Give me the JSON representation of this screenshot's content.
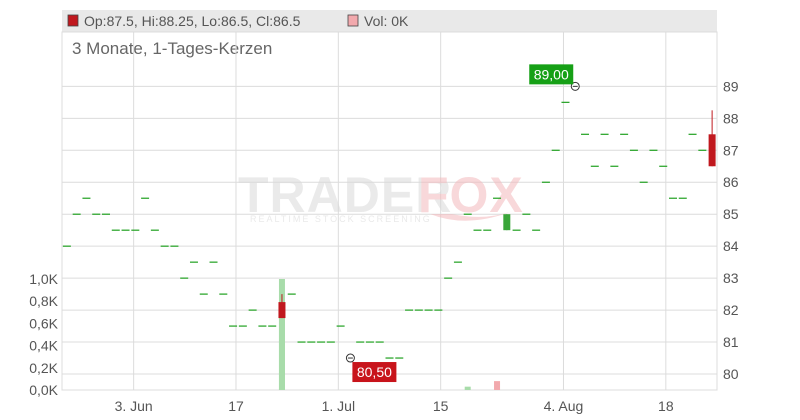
{
  "header": {
    "ohlc": "Op:87.5, Hi:88.25, Lo:86.5, Cl:86.5",
    "volume": "Vol: 0K"
  },
  "subtitle": "3 Monate, 1-Tages-Kerzen",
  "watermark": {
    "brand_left": "TRADER",
    "brand_right": "FOX",
    "tagline": "REALTIME STOCK SCREENING"
  },
  "colors": {
    "up": "#3aa63a",
    "down": "#c0181e",
    "flat": "#1fa01f",
    "vol_up": "#a8dcaa",
    "vol_down": "#f2a9ad",
    "grid": "#dcdcdc",
    "header_bg": "#e9e9e9",
    "callout_high": "#16a016",
    "callout_low": "#c8141b"
  },
  "chart_data": {
    "type": "candlestick",
    "price_axis": {
      "ticks": [
        80,
        81,
        82,
        83,
        84,
        85,
        86,
        87,
        88,
        89
      ],
      "range": [
        79.5,
        90.2
      ]
    },
    "volume_axis": {
      "ticks": [
        "0,0K",
        "0,2K",
        "0,4K",
        "0,6K",
        "0,8K",
        "1,0K"
      ],
      "range": [
        0,
        1.0
      ]
    },
    "x_labels": [
      {
        "label": "3. Jun",
        "index": 3
      },
      {
        "label": "17",
        "index": 8
      },
      {
        "label": "1. Jul",
        "index": 13
      },
      {
        "label": "15",
        "index": 18
      },
      {
        "label": "4. Aug",
        "index": 24
      },
      {
        "label": "18",
        "index": 29
      }
    ],
    "x_per_week": 5,
    "x_start_index": 0,
    "x_end_index": 31,
    "candles": [
      {
        "price": 84.0
      },
      {
        "price": 85.0
      },
      {
        "price": 85.5
      },
      {
        "price": 85.0
      },
      {
        "price": 85.0
      },
      {
        "price": 84.5
      },
      {
        "price": 84.5
      },
      {
        "price": 84.5
      },
      {
        "price": 85.5
      },
      {
        "price": 84.5
      },
      {
        "price": 84.0
      },
      {
        "price": 84.0
      },
      {
        "price": 83.0
      },
      {
        "price": 83.5
      },
      {
        "price": 82.5
      },
      {
        "price": 83.5
      },
      {
        "price": 82.5
      },
      {
        "price": 81.5
      },
      {
        "price": 81.5
      },
      {
        "price": 82.0
      },
      {
        "price": 81.5
      },
      {
        "price": 81.5
      },
      {
        "o": 82.25,
        "h": 82.5,
        "l": 81.75,
        "c": 81.75
      },
      {
        "price": 82.5
      },
      {
        "price": 81.0
      },
      {
        "price": 81.0
      },
      {
        "price": 81.0
      },
      {
        "price": 81.0
      },
      {
        "price": 81.5
      },
      {
        "price": 80.5
      },
      {
        "price": 81.0
      },
      {
        "price": 81.0
      },
      {
        "price": 81.0
      },
      {
        "price": 80.5
      },
      {
        "price": 80.5
      },
      {
        "price": 82.0
      },
      {
        "price": 82.0
      },
      {
        "price": 82.0
      },
      {
        "price": 82.0
      },
      {
        "price": 83.0
      },
      {
        "price": 83.5
      },
      {
        "price": 85.0
      },
      {
        "price": 84.5
      },
      {
        "price": 84.5
      },
      {
        "price": 85.5
      },
      {
        "o": 84.5,
        "h": 85.0,
        "l": 84.5,
        "c": 85.0
      },
      {
        "price": 84.5
      },
      {
        "price": 85.0
      },
      {
        "price": 84.5
      },
      {
        "price": 86.0
      },
      {
        "price": 87.0
      },
      {
        "price": 88.5
      },
      {
        "price": 89.0
      },
      {
        "price": 87.5
      },
      {
        "price": 86.5
      },
      {
        "price": 87.5
      },
      {
        "price": 86.5
      },
      {
        "price": 87.5
      },
      {
        "price": 87.0
      },
      {
        "price": 86.0
      },
      {
        "price": 87.0
      },
      {
        "price": 86.5
      },
      {
        "price": 85.5
      },
      {
        "price": 85.5
      },
      {
        "price": 87.5
      },
      {
        "price": 87.0
      },
      {
        "o": 87.5,
        "h": 88.25,
        "l": 86.5,
        "c": 86.5
      }
    ],
    "volumes": [
      {
        "index": 22,
        "value": 1.0,
        "dir": "up"
      },
      {
        "index": 22.0001,
        "value": 0.77,
        "dir": "up"
      },
      {
        "index": 41,
        "value": 0.03,
        "dir": "up"
      },
      {
        "index": 44,
        "value": 0.08,
        "dir": "down"
      }
    ],
    "annotations": [
      {
        "label": "89,00",
        "type": "high",
        "price": 89.0
      },
      {
        "label": "80,50",
        "type": "low",
        "price": 80.5
      }
    ]
  }
}
